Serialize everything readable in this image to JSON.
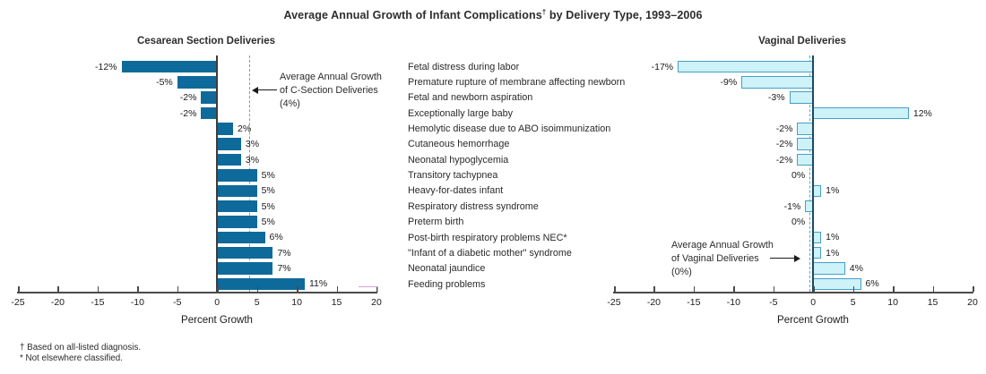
{
  "header": {
    "title_pre": "Average Annual Growth of Infant Complications",
    "title_sup": "†",
    "title_post": " by Delivery Type, 1993–2006"
  },
  "annotations": {
    "left": {
      "lines": [
        "Average Annual Growth",
        "of C-Section Deliveries",
        "(4%)"
      ]
    },
    "right": {
      "lines": [
        "Average Annual Growth",
        "of Vaginal Deliveries",
        "(0%)"
      ]
    }
  },
  "footnotes": [
    "† Based on all-listed diagnosis.",
    "* Not elsewhere classified."
  ],
  "colors": {
    "cesarean_bar": "#0e6a9b",
    "vaginal_bar_fill": "#cdf2f8",
    "vaginal_bar_border": "#44a0c9",
    "dashed_line": "#5aa7d1",
    "axis": "#4a4a4a",
    "zero_line_left": "#3d3d3d",
    "zero_line_right": "#1c4a63",
    "artifact_pink": "#d2a3d6"
  },
  "chart_data": {
    "type": "bar",
    "orientation": "horizontal",
    "title": "Average Annual Growth of Infant Complications† by Delivery Type, 1993–2006",
    "xlabel": "Percent Growth",
    "xlim": [
      -25,
      20
    ],
    "xticks": [
      -25,
      -20,
      -15,
      -10,
      -5,
      0,
      5,
      10,
      15,
      20
    ],
    "grid": false,
    "categories": [
      "Fetal distress during labor",
      "Premature rupture of membrane affecting newborn",
      "Fetal and newborn aspiration",
      "Exceptionally large baby",
      "Hemolytic disease due to ABO isoimmunization",
      "Cutaneous hemorrhage",
      "Neonatal hypoglycemia",
      "Transitory tachypnea",
      "Heavy-for-dates infant",
      "Respiratory distress syndrome",
      "Preterm birth",
      "Post-birth respiratory problems NEC*",
      "\"Infant of a diabetic mother\" syndrome",
      "Neonatal jaundice",
      "Feeding problems"
    ],
    "series": [
      {
        "name": "Cesarean Section Deliveries",
        "values": [
          -12,
          -5,
          -2,
          -2,
          2,
          3,
          3,
          5,
          5,
          5,
          5,
          6,
          7,
          7,
          11
        ],
        "average_growth_pct": 4,
        "value_suffix": "%"
      },
      {
        "name": "Vaginal Deliveries",
        "values": [
          -17,
          -9,
          -3,
          12,
          -2,
          -2,
          -2,
          0,
          1,
          -1,
          0,
          1,
          1,
          4,
          6
        ],
        "average_growth_pct": 0,
        "value_suffix": "%"
      }
    ]
  }
}
